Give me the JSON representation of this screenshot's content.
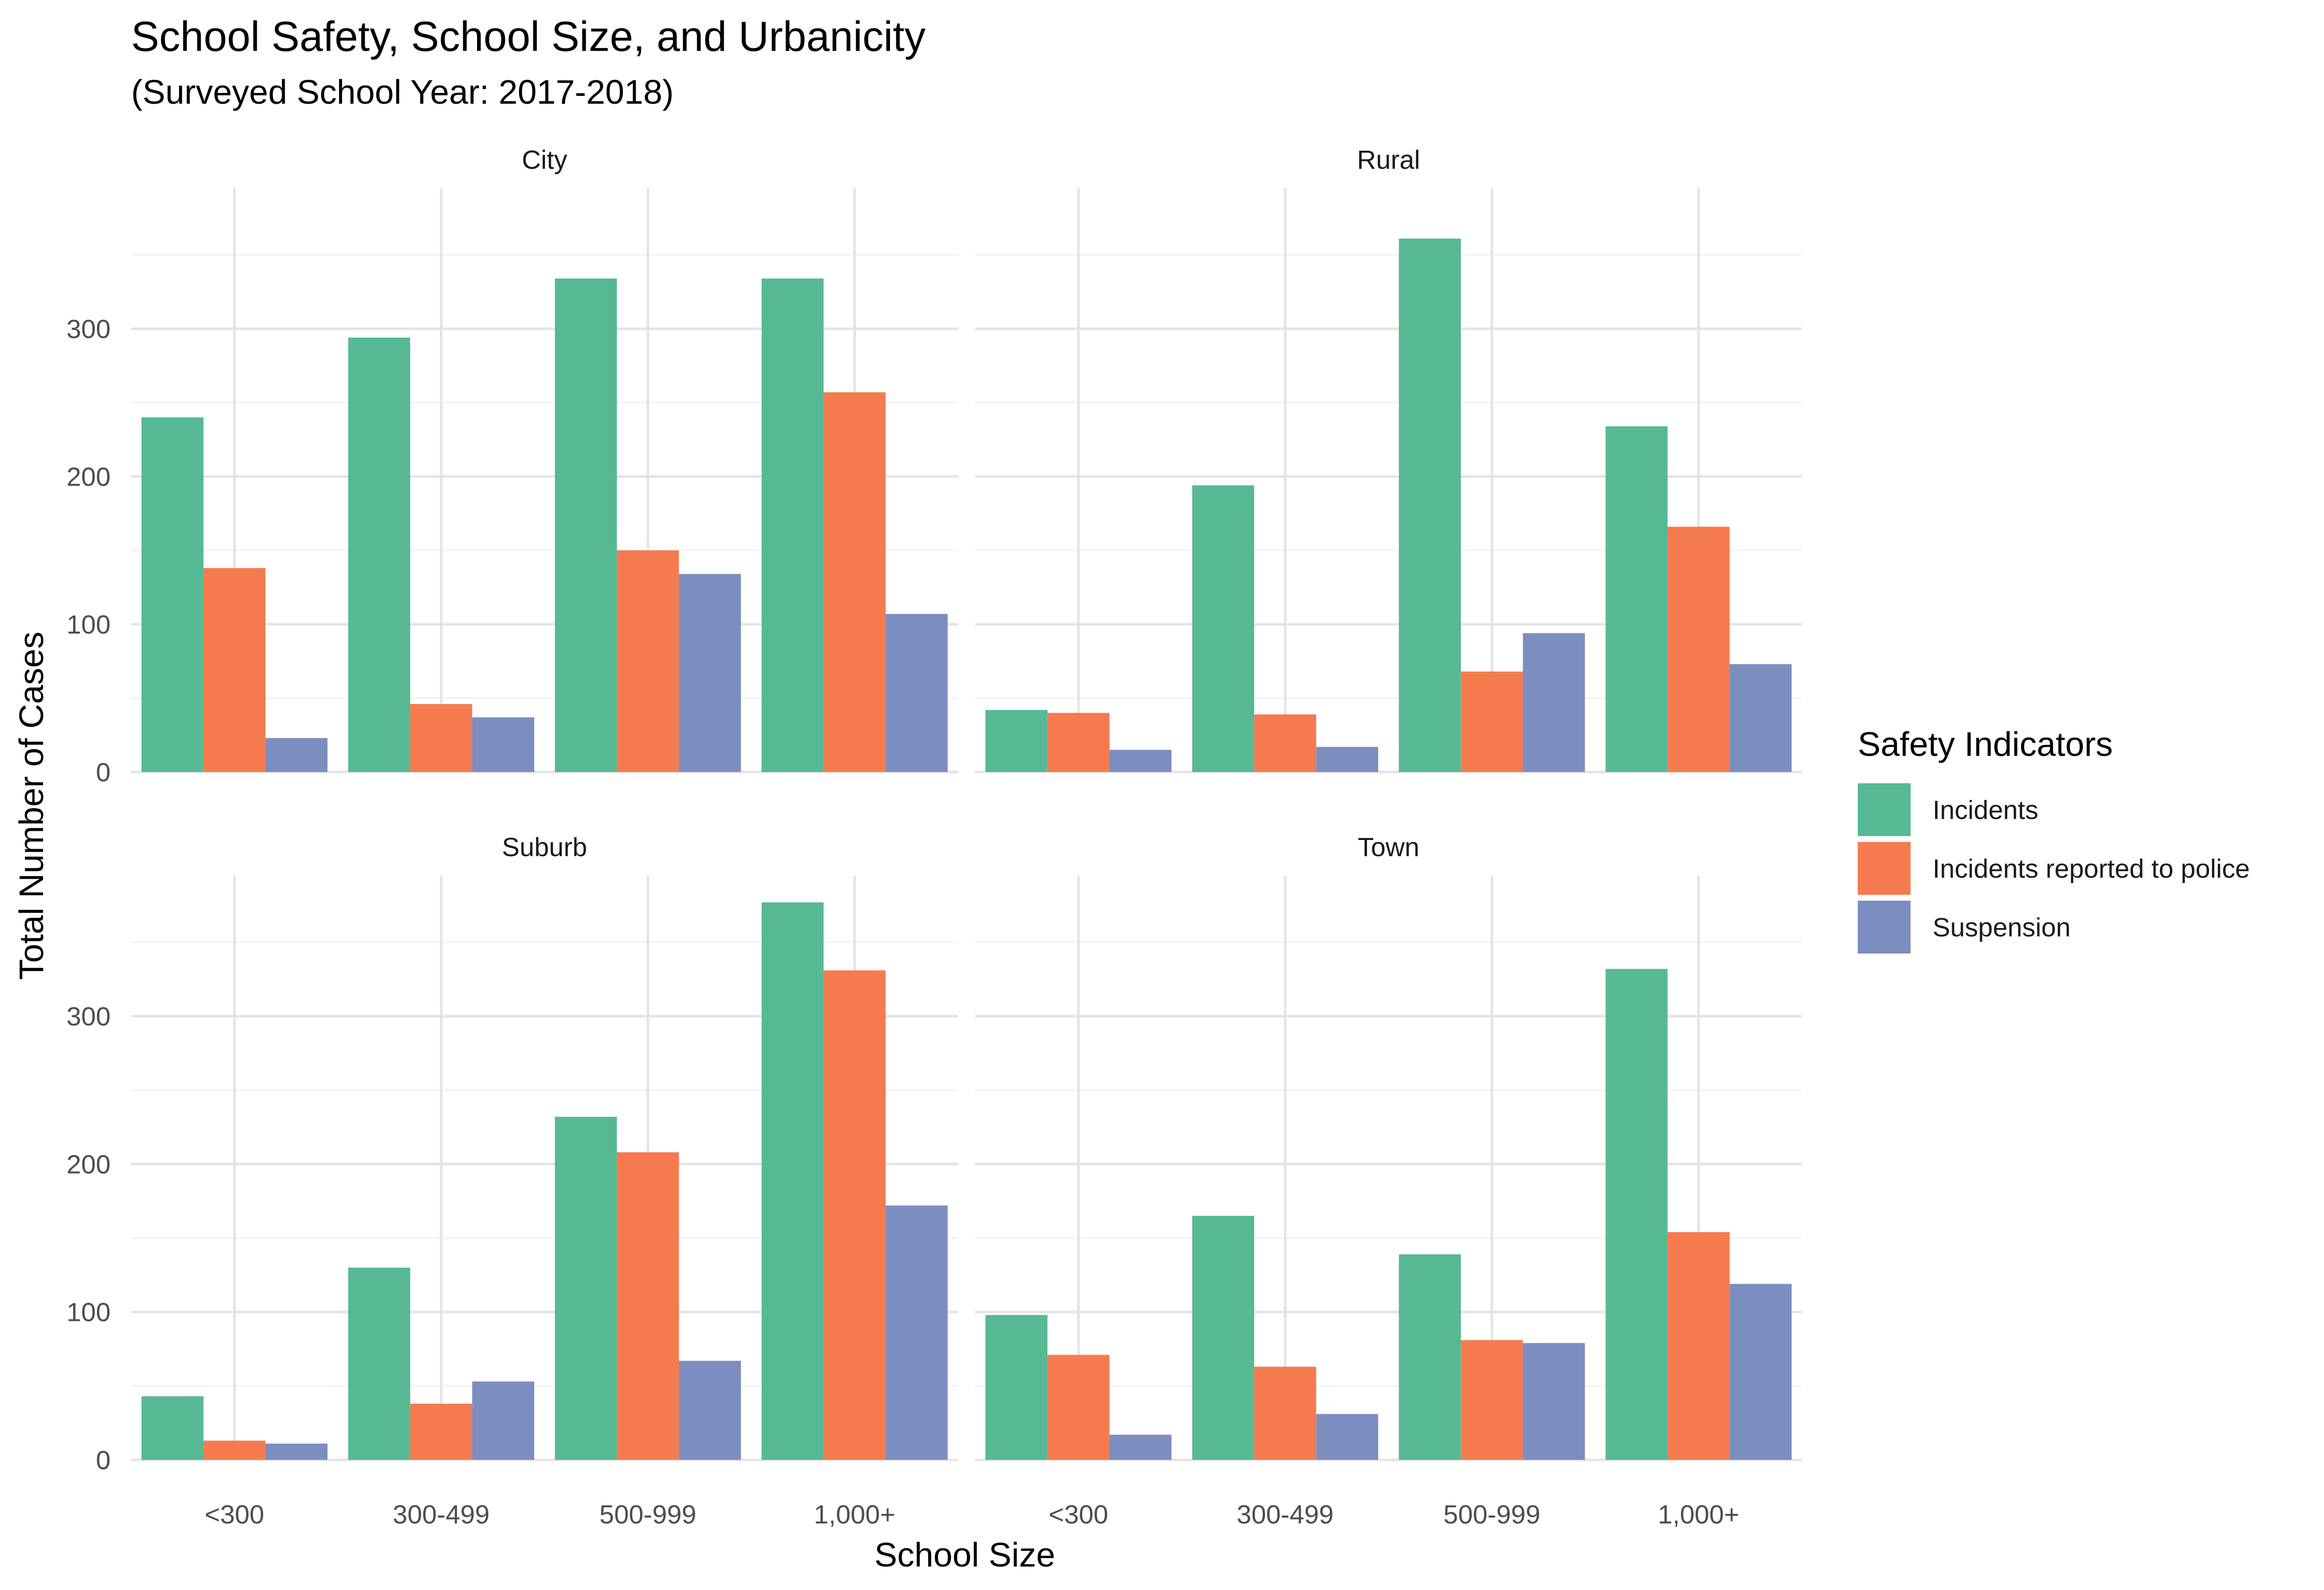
{
  "chart_data": {
    "type": "bar",
    "title": "School Safety, School Size, and Urbanicity",
    "subtitle": "(Surveyed School Year: 2017-2018)",
    "xlabel": "School Size",
    "ylabel": "Total Number of Cases",
    "categories": [
      "<300",
      "300-499",
      "500-999",
      "1,000+"
    ],
    "yticks": [
      0,
      100,
      200,
      300
    ],
    "ylim": [
      0,
      395
    ],
    "grid": true,
    "legend": {
      "title": "Safety Indicators",
      "position": "right",
      "entries": [
        "Incidents",
        "Incidents reported to police",
        "Suspension"
      ]
    },
    "series_colors": [
      "#57b994",
      "#f57b4f",
      "#7c8ec0"
    ],
    "panels": [
      {
        "name": "City",
        "series": [
          {
            "name": "Incidents",
            "values": [
              240,
              294,
              334,
              334
            ]
          },
          {
            "name": "Incidents reported to police",
            "values": [
              138,
              46,
              150,
              257
            ]
          },
          {
            "name": "Suspension",
            "values": [
              23,
              37,
              134,
              107
            ]
          }
        ]
      },
      {
        "name": "Rural",
        "series": [
          {
            "name": "Incidents",
            "values": [
              42,
              194,
              361,
              234
            ]
          },
          {
            "name": "Incidents reported to police",
            "values": [
              40,
              39,
              68,
              166
            ]
          },
          {
            "name": "Suspension",
            "values": [
              15,
              17,
              94,
              73
            ]
          }
        ]
      },
      {
        "name": "Suburb",
        "series": [
          {
            "name": "Incidents",
            "values": [
              43,
              130,
              232,
              377
            ]
          },
          {
            "name": "Incidents reported to police",
            "values": [
              13,
              38,
              208,
              331
            ]
          },
          {
            "name": "Suspension",
            "values": [
              11,
              53,
              67,
              172
            ]
          }
        ]
      },
      {
        "name": "Town",
        "series": [
          {
            "name": "Incidents",
            "values": [
              98,
              165,
              139,
              332
            ]
          },
          {
            "name": "Incidents reported to police",
            "values": [
              71,
              63,
              81,
              154
            ]
          },
          {
            "name": "Suspension",
            "values": [
              17,
              31,
              79,
              119
            ]
          }
        ]
      }
    ]
  }
}
